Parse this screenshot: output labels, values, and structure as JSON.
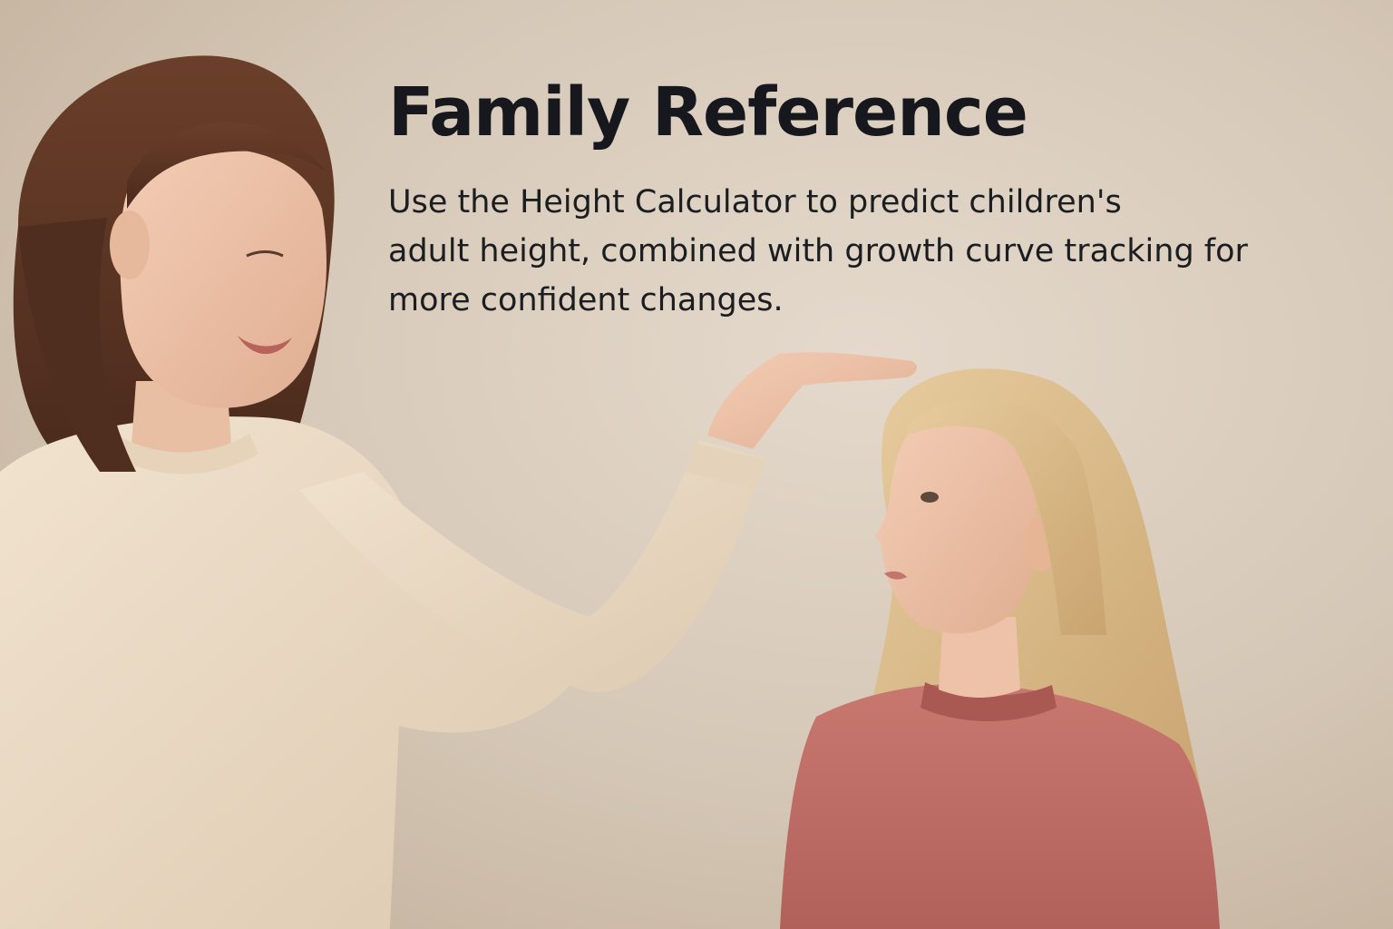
{
  "headline": "Family Reference",
  "body_lines": [
    "Use the Height Calculator to predict children's",
    "adult height, combined with growth curve tracking for",
    "more confident changes."
  ],
  "colors": {
    "wall": "#d9ccbd",
    "text": "#16181d",
    "mother_sweater": "#ecdcc7",
    "mother_hair": "#5a3424",
    "girl_sweater": "#c2706a",
    "girl_hair": "#d9b888"
  }
}
